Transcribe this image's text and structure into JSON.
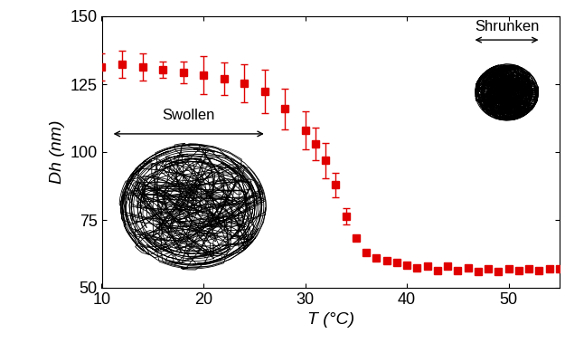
{
  "chart_data": {
    "type": "scatter",
    "xlabel": "T (°C)",
    "ylabel": "Dh (nm)",
    "x": [
      10,
      12,
      14,
      16,
      18,
      20,
      22,
      24,
      26,
      28,
      30,
      31,
      32,
      33,
      34,
      35,
      36,
      37,
      38,
      39,
      40,
      41,
      42,
      43,
      44,
      45,
      46,
      47,
      48,
      49,
      50,
      51,
      52,
      53,
      54,
      55
    ],
    "values": [
      131.5,
      132.5,
      131.5,
      130.5,
      129.5,
      128.5,
      127,
      125.5,
      122.5,
      116,
      108,
      103,
      97,
      88,
      76.5,
      68.5,
      63,
      61,
      60,
      59.5,
      58.5,
      57.5,
      58,
      56.5,
      58,
      56.5,
      57.5,
      56,
      57,
      56,
      57,
      56.5,
      57,
      56.5,
      57,
      57
    ],
    "errors": [
      5,
      5,
      5,
      3,
      4,
      7,
      6,
      7,
      8,
      7.5,
      7,
      6,
      6.5,
      4.5,
      3,
      1,
      0.5,
      0.5,
      0.5,
      0.5,
      0.5,
      0.5,
      0.5,
      0.5,
      0.5,
      0.5,
      0.5,
      0.5,
      0.5,
      0.5,
      0.5,
      0.5,
      0.5,
      0.5,
      0.5,
      0.5
    ],
    "color": "#e00000",
    "marker": "square",
    "xlim": [
      10,
      55
    ],
    "xticks": [
      10,
      20,
      30,
      40,
      50
    ],
    "ylim": [
      50,
      150
    ],
    "yticks": [
      50,
      75,
      100,
      125,
      150
    ],
    "grid": false,
    "annotations": [
      "Swollen",
      "Shrunken"
    ]
  }
}
